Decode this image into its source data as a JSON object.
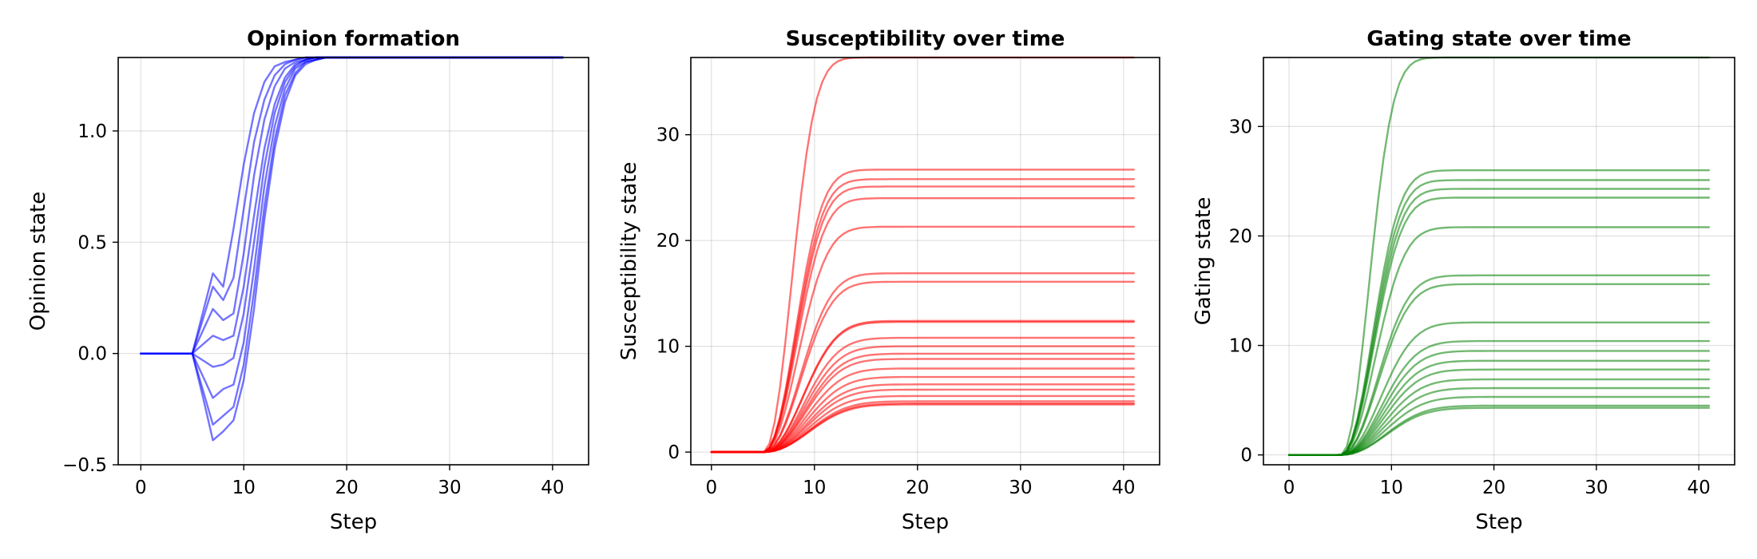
{
  "chart_data": [
    {
      "type": "line",
      "title": "Opinion formation",
      "xlabel": "Step",
      "ylabel": "Opinion state",
      "xlim": [
        -2.2,
        43.5
      ],
      "ylim": [
        -0.5,
        1.33
      ],
      "xticks": [
        0,
        10,
        20,
        30,
        40
      ],
      "xtick_labels": [
        "0",
        "10",
        "20",
        "30",
        "40"
      ],
      "yticks": [
        -0.5,
        0.0,
        0.5,
        1.0
      ],
      "ytick_labels": [
        "−0.5",
        "0.0",
        "0.5",
        "1.0"
      ],
      "grid": true,
      "legend": "none",
      "color": "#0000ff",
      "x": [
        0,
        1,
        2,
        3,
        4,
        5,
        6,
        7,
        8,
        9,
        10,
        11,
        12,
        13,
        14,
        15,
        16,
        17,
        18,
        19,
        20,
        22,
        24,
        26,
        28,
        30,
        32,
        34,
        36,
        38,
        40,
        41
      ],
      "series": [
        {
          "values": [
            0,
            0,
            0,
            0,
            0,
            0,
            0.18,
            0.36,
            0.3,
            0.56,
            0.85,
            1.08,
            1.22,
            1.29,
            1.31,
            1.32,
            1.33,
            1.33,
            1.33,
            1.33,
            1.33,
            1.33,
            1.33,
            1.33,
            1.33,
            1.33,
            1.33,
            1.33,
            1.33,
            1.33,
            1.33,
            1.33
          ]
        },
        {
          "values": [
            0,
            0,
            0,
            0,
            0,
            0,
            0.15,
            0.3,
            0.24,
            0.34,
            0.65,
            0.95,
            1.14,
            1.25,
            1.3,
            1.32,
            1.33,
            1.33,
            1.33,
            1.33,
            1.33,
            1.33,
            1.33,
            1.33,
            1.33,
            1.33,
            1.33,
            1.33,
            1.33,
            1.33,
            1.33,
            1.33
          ]
        },
        {
          "values": [
            0,
            0,
            0,
            0,
            0,
            0,
            0.1,
            0.2,
            0.15,
            0.18,
            0.45,
            0.8,
            1.05,
            1.2,
            1.28,
            1.31,
            1.32,
            1.33,
            1.33,
            1.33,
            1.33,
            1.33,
            1.33,
            1.33,
            1.33,
            1.33,
            1.33,
            1.33,
            1.33,
            1.33,
            1.33,
            1.33
          ]
        },
        {
          "values": [
            0,
            0,
            0,
            0,
            0,
            0,
            0.04,
            0.08,
            0.06,
            0.08,
            0.3,
            0.62,
            0.92,
            1.12,
            1.24,
            1.3,
            1.32,
            1.33,
            1.33,
            1.33,
            1.33,
            1.33,
            1.33,
            1.33,
            1.33,
            1.33,
            1.33,
            1.33,
            1.33,
            1.33,
            1.33,
            1.33
          ]
        },
        {
          "values": [
            0,
            0,
            0,
            0,
            0,
            0,
            -0.03,
            -0.06,
            -0.05,
            -0.02,
            0.18,
            0.5,
            0.84,
            1.08,
            1.22,
            1.29,
            1.32,
            1.33,
            1.33,
            1.33,
            1.33,
            1.33,
            1.33,
            1.33,
            1.33,
            1.33,
            1.33,
            1.33,
            1.33,
            1.33,
            1.33,
            1.33
          ]
        },
        {
          "values": [
            0,
            0,
            0,
            0,
            0,
            0,
            -0.1,
            -0.2,
            -0.16,
            -0.14,
            0.05,
            0.38,
            0.75,
            1.02,
            1.19,
            1.28,
            1.31,
            1.32,
            1.33,
            1.33,
            1.33,
            1.33,
            1.33,
            1.33,
            1.33,
            1.33,
            1.33,
            1.33,
            1.33,
            1.33,
            1.33,
            1.33
          ]
        },
        {
          "values": [
            0,
            0,
            0,
            0,
            0,
            0,
            -0.16,
            -0.32,
            -0.28,
            -0.24,
            -0.05,
            0.28,
            0.66,
            0.96,
            1.16,
            1.26,
            1.31,
            1.32,
            1.33,
            1.33,
            1.33,
            1.33,
            1.33,
            1.33,
            1.33,
            1.33,
            1.33,
            1.33,
            1.33,
            1.33,
            1.33,
            1.33
          ]
        },
        {
          "values": [
            0,
            0,
            0,
            0,
            0,
            0,
            -0.19,
            -0.39,
            -0.35,
            -0.3,
            -0.12,
            0.2,
            0.6,
            0.92,
            1.13,
            1.25,
            1.3,
            1.32,
            1.33,
            1.33,
            1.33,
            1.33,
            1.33,
            1.33,
            1.33,
            1.33,
            1.33,
            1.33,
            1.33,
            1.33,
            1.33,
            1.33
          ]
        }
      ]
    },
    {
      "type": "line",
      "title": "Susceptibility over time",
      "xlabel": "Step",
      "ylabel": "Susceptibility state",
      "xlim": [
        -2,
        43.5
      ],
      "ylim": [
        -1.2,
        37.3
      ],
      "xticks": [
        0,
        10,
        20,
        30,
        40
      ],
      "xtick_labels": [
        "0",
        "10",
        "20",
        "30",
        "40"
      ],
      "yticks": [
        0,
        10,
        20,
        30
      ],
      "ytick_labels": [
        "0",
        "10",
        "20",
        "30"
      ],
      "grid": true,
      "legend": "none",
      "color": "#ff0000",
      "x_end": 41,
      "series": [
        {
          "values": [
            37.3,
            26.7,
            25.8,
            25.1,
            24.0,
            21.3,
            16.9,
            16.1,
            12.4,
            12.3,
            10.8,
            10.0,
            9.3,
            8.8,
            7.9,
            7.1,
            6.4,
            5.9,
            5.3,
            4.8,
            4.6,
            4.5
          ]
        }
      ]
    },
    {
      "type": "line",
      "title": "Gating state over time",
      "xlabel": "Step",
      "ylabel": "Gating state",
      "xlim": [
        -2.5,
        43.5
      ],
      "ylim": [
        -0.9,
        36.3
      ],
      "xticks": [
        0,
        10,
        20,
        30,
        40
      ],
      "xtick_labels": [
        "0",
        "10",
        "20",
        "30",
        "40"
      ],
      "yticks": [
        0,
        10,
        20,
        30
      ],
      "ytick_labels": [
        "0",
        "10",
        "20",
        "30"
      ],
      "grid": true,
      "legend": "none",
      "color": "#008000",
      "x_end": 41,
      "series": [
        {
          "values": [
            36.3,
            26.0,
            25.1,
            24.3,
            23.5,
            20.8,
            16.4,
            15.6,
            12.1,
            10.4,
            9.5,
            8.6,
            7.8,
            6.9,
            6.1,
            5.3,
            4.5,
            4.3
          ]
        }
      ]
    }
  ]
}
